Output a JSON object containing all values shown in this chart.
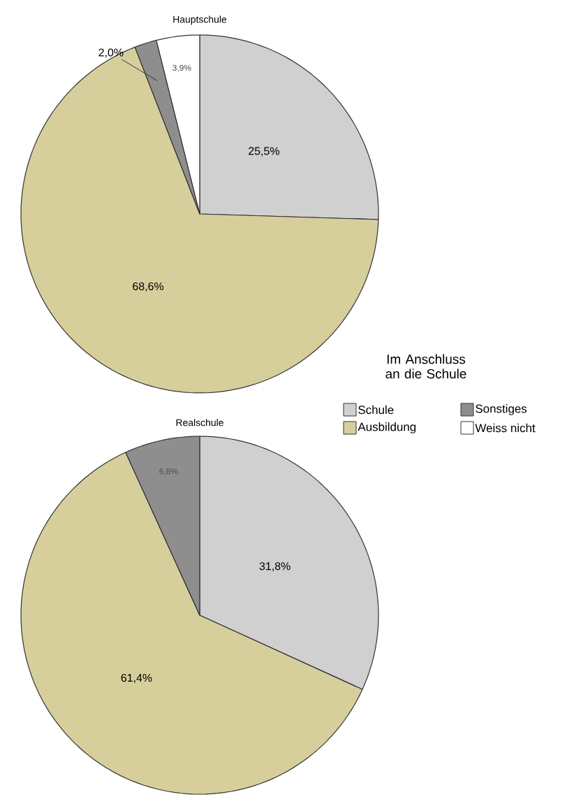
{
  "chart_data": [
    {
      "type": "pie",
      "title": "Hauptschule",
      "categories": [
        "Schule",
        "Ausbildung",
        "Sonstiges",
        "Weiss nicht"
      ],
      "values": [
        25.5,
        68.6,
        2.0,
        3.9
      ],
      "colors": [
        "#d0d0d0",
        "#d6cf9c",
        "#8e8e8e",
        "#ffffff"
      ],
      "value_labels": [
        "25,5%",
        "68,6%",
        "2,0%",
        "3,9%"
      ],
      "legend": "right",
      "legend_title": "Im Anschluss an  die Schule"
    },
    {
      "type": "pie",
      "title": "Realschule",
      "categories": [
        null,
        null,
        null
      ],
      "values": [
        31.8,
        61.4,
        6.8
      ],
      "colors": [
        "#d0d0d0",
        "#d6cf9c",
        "#8e8e8e"
      ],
      "value_labels": [
        "31,8%",
        "61,4%",
        "6,8%"
      ]
    }
  ]
}
